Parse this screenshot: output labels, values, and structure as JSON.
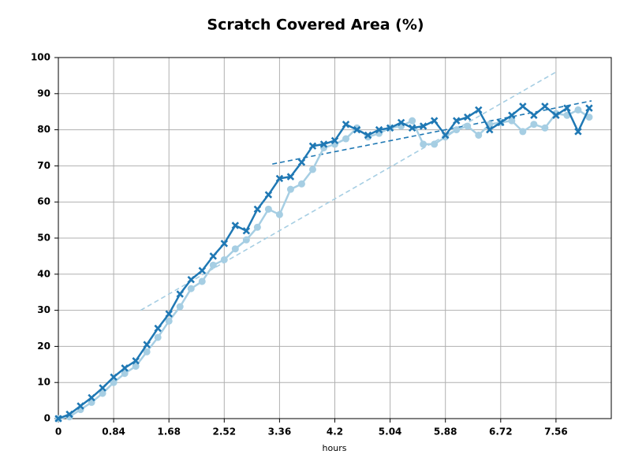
{
  "chart_data": {
    "type": "line",
    "title": "Scratch Covered Area (%)",
    "x_label": "hours",
    "x": [
      0,
      0.168,
      0.336,
      0.504,
      0.672,
      0.84,
      1.008,
      1.176,
      1.344,
      1.512,
      1.68,
      1.848,
      2.016,
      2.184,
      2.352,
      2.52,
      2.688,
      2.856,
      3.024,
      3.192,
      3.36,
      3.528,
      3.696,
      3.864,
      4.032,
      4.2,
      4.368,
      4.536,
      4.704,
      4.872,
      5.04,
      5.208,
      5.376,
      5.544,
      5.712,
      5.88,
      6.048,
      6.216,
      6.384,
      6.552,
      6.72,
      6.888,
      7.056,
      7.224,
      7.392,
      7.56,
      7.728,
      7.896,
      8.064
    ],
    "series": [
      {
        "color": "#a6cee3",
        "marker": "circle",
        "values": [
          0,
          0.5,
          2.5,
          4.5,
          7,
          10,
          12.5,
          14.5,
          18.5,
          22.5,
          27,
          31,
          36,
          38,
          42.5,
          44,
          47,
          49.5,
          53,
          58,
          56.5,
          63.5,
          65,
          69,
          75,
          76,
          77.5,
          80.5,
          78,
          79,
          80.5,
          81,
          82.5,
          76,
          76,
          78,
          80,
          81,
          78.5,
          81.5,
          82,
          82.5,
          79.5,
          81.5,
          80.5,
          84.5,
          84,
          85.5,
          83.5
        ]
      },
      {
        "color": "#1f78b4",
        "marker": "x",
        "values": [
          0,
          1.2,
          3.5,
          5.8,
          8.5,
          11.5,
          14,
          16,
          20.5,
          25,
          29,
          34.5,
          38.5,
          41,
          45,
          48.5,
          53.5,
          52,
          58,
          62,
          66.5,
          67,
          71,
          75.5,
          76,
          77,
          81.5,
          80,
          78.5,
          80,
          80.5,
          82,
          80.5,
          81,
          82.5,
          78.5,
          82.5,
          83.5,
          85.5,
          80,
          82,
          84,
          86.5,
          84,
          86.5,
          84,
          86,
          79.5,
          86
        ]
      },
      {
        "color": "#a6cee3",
        "dashed": true,
        "x": [
          1.25,
          7.56
        ],
        "values": [
          30,
          96
        ]
      },
      {
        "color": "#1f78b4",
        "dashed": true,
        "x": [
          3.25,
          8.1
        ],
        "values": [
          70.5,
          88
        ]
      }
    ],
    "xlim": [
      0,
      8.4
    ],
    "xticks": [
      0,
      0.84,
      1.68,
      2.52,
      3.36,
      4.2,
      5.04,
      5.88,
      6.72,
      7.56
    ],
    "ylim": [
      0,
      100
    ],
    "yticks": [
      0,
      10,
      20,
      30,
      40,
      50,
      60,
      70,
      80,
      90,
      100
    ],
    "grid": true
  }
}
